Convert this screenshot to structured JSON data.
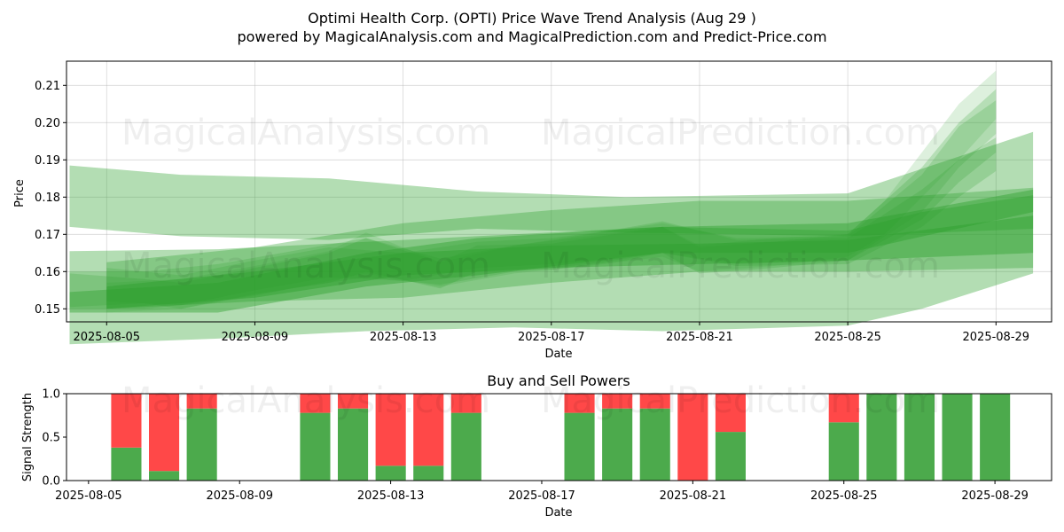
{
  "title_line1": "Optimi Health Corp. (OPTI) Price Wave Trend Analysis (Aug 29 )",
  "title_line2": "powered by MagicalAnalysis.com and MagicalPrediction.com and Predict-Price.com",
  "watermarks": [
    "MagicalAnalysis.com",
    "MagicalPrediction.com"
  ],
  "colors": {
    "band": "#2ca02c",
    "buy": "#4caa4c",
    "sell": "#ff4848"
  },
  "chart_data": [
    {
      "type": "area",
      "xlabel": "Date",
      "ylabel": "Price",
      "x_ticks": [
        "2025-08-05",
        "2025-08-09",
        "2025-08-13",
        "2025-08-17",
        "2025-08-21",
        "2025-08-25",
        "2025-08-29"
      ],
      "y_ticks": [
        "0.15",
        "0.16",
        "0.17",
        "0.18",
        "0.19",
        "0.20",
        "0.21"
      ],
      "xlim": [
        "2025-08-03T22:00",
        "2025-08-30T12:00"
      ],
      "ylim": [
        0.1465,
        0.2165
      ],
      "grid": true,
      "series": [
        {
          "x": [
            "2025-08-04",
            "2025-08-07",
            "2025-08-11",
            "2025-08-15",
            "2025-08-19",
            "2025-08-25",
            "2025-08-30"
          ],
          "lower": [
            0.172,
            0.1695,
            0.1685,
            0.1715,
            0.1705,
            0.1695,
            0.1715
          ],
          "upper": [
            0.1885,
            0.186,
            0.185,
            0.1815,
            0.18,
            0.181,
            0.1975
          ]
        },
        {
          "x": [
            "2025-08-04",
            "2025-08-08",
            "2025-08-12",
            "2025-08-16",
            "2025-08-20",
            "2025-08-25",
            "2025-08-27",
            "2025-08-30"
          ],
          "lower": [
            0.1405,
            0.142,
            0.144,
            0.145,
            0.144,
            0.1455,
            0.15,
            0.1595
          ],
          "upper": [
            0.1655,
            0.166,
            0.168,
            0.17,
            0.172,
            0.171,
            0.176,
            0.1805
          ]
        },
        {
          "x": [
            "2025-08-04",
            "2025-08-08",
            "2025-08-12",
            "2025-08-15",
            "2025-08-20",
            "2025-08-25",
            "2025-08-30"
          ],
          "lower": [
            0.149,
            0.149,
            0.156,
            0.159,
            0.165,
            0.165,
            0.176
          ],
          "upper": [
            0.1545,
            0.157,
            0.165,
            0.169,
            0.172,
            0.173,
            0.182
          ]
        },
        {
          "x": [
            "2025-08-05",
            "2025-08-09",
            "2025-08-13",
            "2025-08-17",
            "2025-08-21",
            "2025-08-25",
            "2025-08-30"
          ],
          "lower": [
            0.15,
            0.153,
            0.159,
            0.161,
            0.162,
            0.163,
            0.165
          ],
          "upper": [
            0.156,
            0.16,
            0.165,
            0.167,
            0.1675,
            0.1685,
            0.175
          ]
        },
        {
          "x": [
            "2025-08-05",
            "2025-08-09",
            "2025-08-13",
            "2025-08-17",
            "2025-08-21",
            "2025-08-25",
            "2025-08-30"
          ],
          "lower": [
            0.15,
            0.152,
            0.153,
            0.157,
            0.16,
            0.16,
            0.161
          ],
          "upper": [
            0.1625,
            0.1665,
            0.173,
            0.1765,
            0.179,
            0.179,
            0.1825
          ]
        },
        {
          "x": [
            "2025-08-04",
            "2025-08-06",
            "2025-08-07",
            "2025-08-09",
            "2025-08-11",
            "2025-08-12",
            "2025-08-14",
            "2025-08-15",
            "2025-08-17",
            "2025-08-19",
            "2025-08-20",
            "2025-08-21",
            "2025-08-23",
            "2025-08-25",
            "2025-08-27",
            "2025-08-28",
            "2025-08-29"
          ],
          "lower": [
            0.1505,
            0.1515,
            0.15,
            0.154,
            0.157,
            0.16,
            0.1555,
            0.16,
            0.1605,
            0.163,
            0.165,
            0.1595,
            0.161,
            0.163,
            0.174,
            0.184,
            0.192
          ],
          "upper": [
            0.1595,
            0.158,
            0.157,
            0.161,
            0.165,
            0.169,
            0.1625,
            0.167,
            0.1675,
            0.1705,
            0.172,
            0.1665,
            0.168,
            0.17,
            0.188,
            0.2,
            0.209
          ]
        },
        {
          "x": [
            "2025-08-05",
            "2025-08-07",
            "2025-08-09",
            "2025-08-11",
            "2025-08-12",
            "2025-08-14",
            "2025-08-16",
            "2025-08-18",
            "2025-08-20",
            "2025-08-21",
            "2025-08-23",
            "2025-08-25",
            "2025-08-26",
            "2025-08-28",
            "2025-08-29"
          ],
          "lower": [
            0.149,
            0.15,
            0.1535,
            0.1575,
            0.1595,
            0.156,
            0.1595,
            0.1615,
            0.164,
            0.16,
            0.1615,
            0.164,
            0.17,
            0.19,
            0.201
          ],
          "upper": [
            0.157,
            0.158,
            0.1615,
            0.1655,
            0.1705,
            0.1625,
            0.167,
            0.1695,
            0.172,
            0.167,
            0.169,
            0.17,
            0.179,
            0.205,
            0.214
          ]
        },
        {
          "x": [
            "2025-08-05",
            "2025-08-07",
            "2025-08-09",
            "2025-08-11",
            "2025-08-13",
            "2025-08-15",
            "2025-08-17",
            "2025-08-19",
            "2025-08-20",
            "2025-08-22",
            "2025-08-25",
            "2025-08-27",
            "2025-08-28",
            "2025-08-29"
          ],
          "lower": [
            0.152,
            0.151,
            0.155,
            0.1585,
            0.1575,
            0.161,
            0.162,
            0.164,
            0.165,
            0.162,
            0.163,
            0.176,
            0.188,
            0.197
          ],
          "upper": [
            0.161,
            0.159,
            0.163,
            0.1665,
            0.165,
            0.168,
            0.169,
            0.1715,
            0.173,
            0.169,
            0.1695,
            0.186,
            0.199,
            0.206
          ]
        },
        {
          "x": [
            "2025-08-04",
            "2025-08-06",
            "2025-08-08",
            "2025-08-10",
            "2025-08-12",
            "2025-08-14",
            "2025-08-16",
            "2025-08-18",
            "2025-08-20",
            "2025-08-22",
            "2025-08-25",
            "2025-08-27",
            "2025-08-28",
            "2025-08-29"
          ],
          "lower": [
            0.15,
            0.15,
            0.152,
            0.1555,
            0.1585,
            0.1565,
            0.16,
            0.162,
            0.165,
            0.1615,
            0.162,
            0.172,
            0.18,
            0.187
          ],
          "upper": [
            0.16,
            0.16,
            0.162,
            0.1655,
            0.169,
            0.1635,
            0.167,
            0.17,
            0.1735,
            0.1685,
            0.169,
            0.182,
            0.19,
            0.196
          ]
        }
      ]
    },
    {
      "type": "bar",
      "title": "Buy and Sell Powers",
      "xlabel": "Date",
      "ylabel": "Signal Strength",
      "x_ticks": [
        "2025-08-05",
        "2025-08-09",
        "2025-08-13",
        "2025-08-17",
        "2025-08-21",
        "2025-08-25",
        "2025-08-29"
      ],
      "y_ticks": [
        "0.0",
        "0.5",
        "1.0"
      ],
      "xlim": [
        "2025-08-04T10:00",
        "2025-08-30T12:00"
      ],
      "ylim": [
        0,
        1
      ],
      "categories": [
        "2025-08-06",
        "2025-08-07",
        "2025-08-08",
        "2025-08-11",
        "2025-08-12",
        "2025-08-13",
        "2025-08-14",
        "2025-08-15",
        "2025-08-18",
        "2025-08-19",
        "2025-08-20",
        "2025-08-21",
        "2025-08-22",
        "2025-08-25",
        "2025-08-26",
        "2025-08-27",
        "2025-08-28",
        "2025-08-29"
      ],
      "series": [
        {
          "values": [
            0.38,
            0.11,
            0.83,
            0.78,
            0.83,
            0.17,
            0.17,
            0.78,
            0.78,
            0.83,
            0.83,
            0.0,
            0.56,
            0.67,
            1.0,
            1.0,
            1.0,
            1.0
          ]
        },
        {
          "values": [
            0.62,
            0.89,
            0.17,
            0.22,
            0.17,
            0.83,
            0.83,
            0.22,
            0.22,
            0.17,
            0.17,
            1.0,
            0.44,
            0.33,
            0.0,
            0.0,
            0.0,
            0.0
          ]
        }
      ]
    }
  ]
}
